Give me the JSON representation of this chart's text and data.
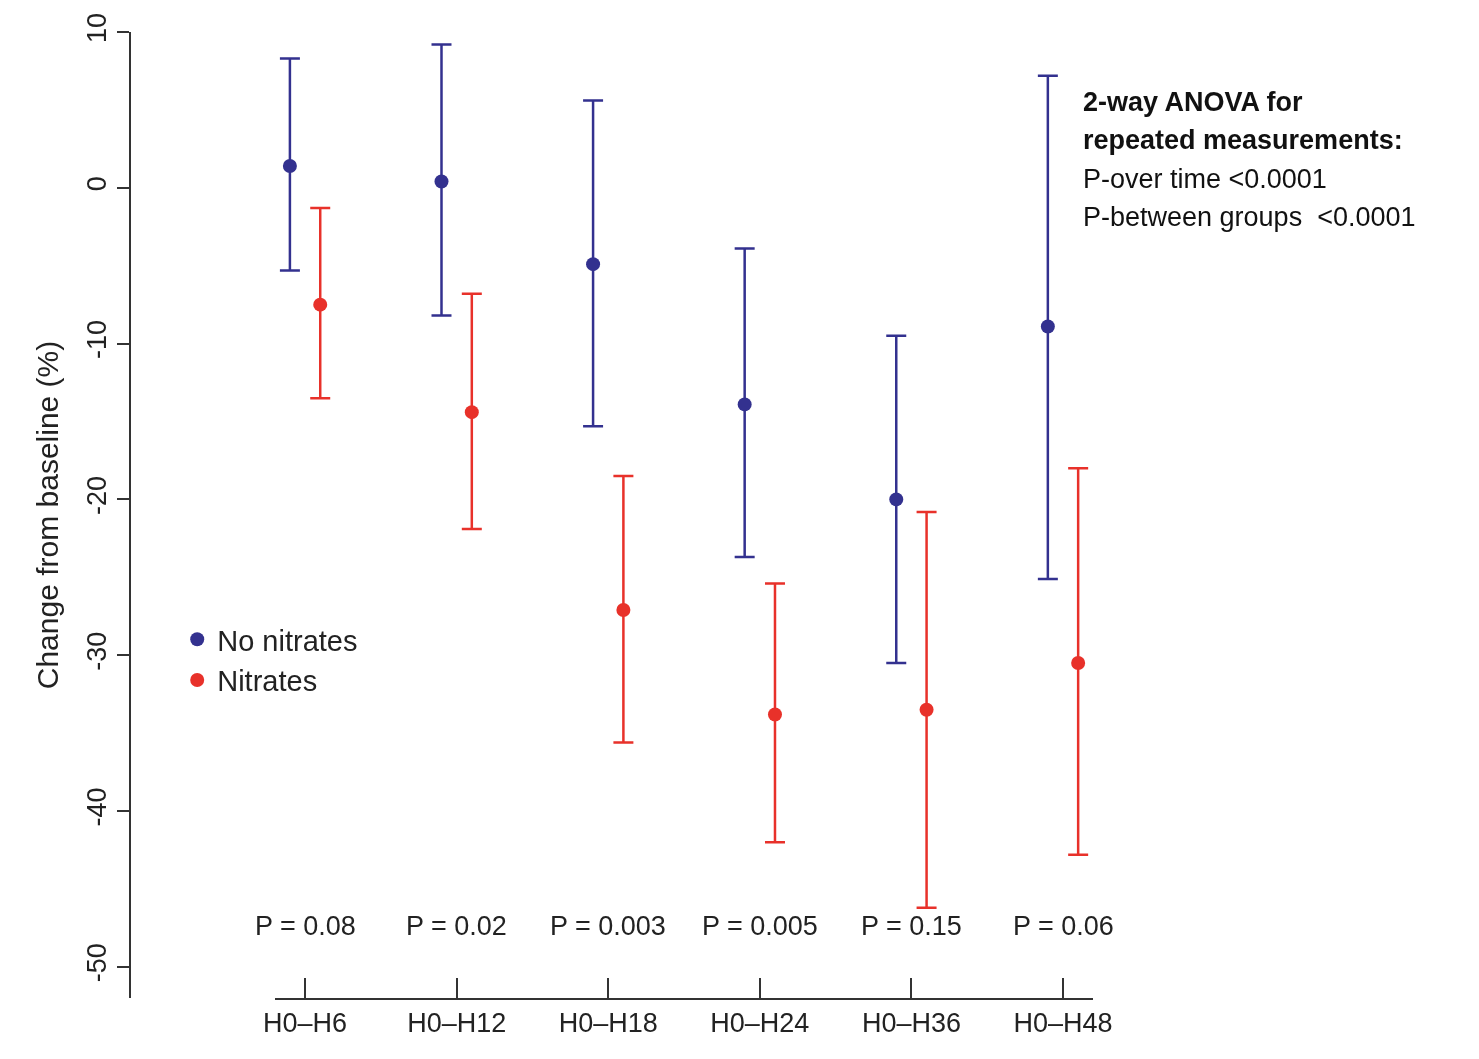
{
  "chart_data": {
    "type": "scatter",
    "ylabel": "Change from baseline (%)",
    "categories": [
      "H0–H6",
      "H0–H12",
      "H0–H18",
      "H0–H24",
      "H0–H36",
      "H0–H48"
    ],
    "series": [
      {
        "name": "No nitrates",
        "color": "#33318f",
        "values": [
          1.4,
          0.4,
          -4.9,
          -13.9,
          -20,
          -8.9
        ],
        "errors": [
          [
            -5.3,
            8.3
          ],
          [
            -8.2,
            9.2
          ],
          [
            -15.3,
            5.6
          ],
          [
            -23.7,
            -3.9
          ],
          [
            -30.5,
            -9.5
          ],
          [
            -25.1,
            7.2
          ]
        ]
      },
      {
        "name": "Nitrates",
        "color": "#e8312a",
        "values": [
          -7.5,
          -14.4,
          -27.1,
          -33.8,
          -33.5,
          -30.5
        ],
        "errors": [
          [
            -13.5,
            -1.3
          ],
          [
            -21.9,
            -6.8
          ],
          [
            -35.6,
            -18.5
          ],
          [
            -42.0,
            -25.4
          ],
          [
            -46.2,
            -20.8
          ],
          [
            -42.8,
            -18.0
          ]
        ]
      }
    ],
    "ylim": [
      -52,
      10
    ],
    "yticks": [
      -50,
      -40,
      -30,
      -20,
      -10,
      0,
      10
    ],
    "grid": false,
    "legend": "left",
    "marker": "circle",
    "tick_labels": "xy",
    "annotations": [
      "P = 0.08",
      "P = 0.02",
      "P = 0.003",
      "P = 0.005",
      "P = 0.15",
      "P = 0.06",
      "2-way ANOVA for",
      "repeated measurements:",
      "P-over time <0.0001",
      "P-between groups  <0.0001"
    ]
  }
}
